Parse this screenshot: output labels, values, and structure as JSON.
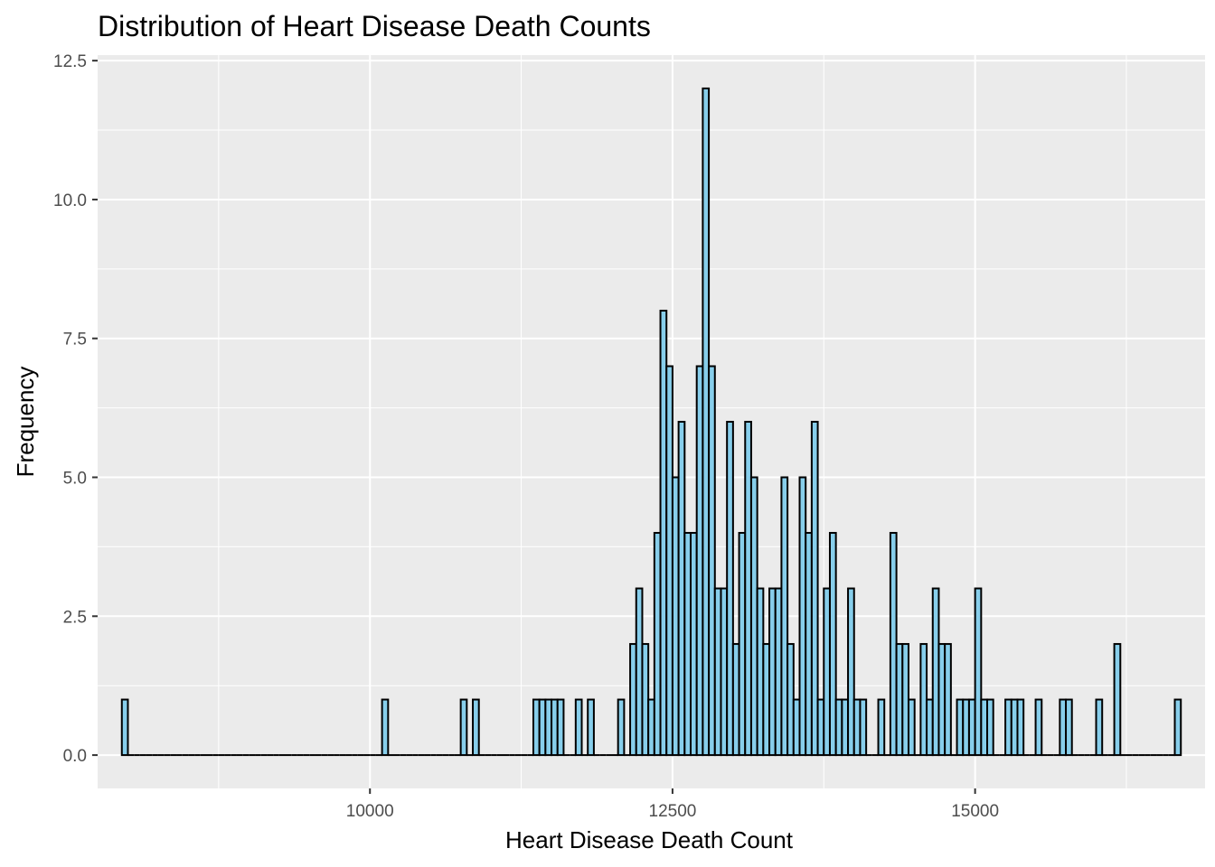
{
  "chart_data": {
    "type": "bar",
    "subtype": "histogram",
    "title": "Distribution of Heart Disease Death Counts",
    "xlabel": "Heart Disease Death Count",
    "ylabel": "Frequency",
    "xlim": [
      7750,
      16900
    ],
    "ylim": [
      -0.6,
      12.6
    ],
    "x_ticks": [
      10000,
      12500,
      15000
    ],
    "x_tick_labels": [
      "10000",
      "12500",
      "15000"
    ],
    "y_ticks": [
      0,
      2.5,
      5,
      7.5,
      10,
      12.5
    ],
    "y_tick_labels": [
      "0.0",
      "2.5",
      "5.0",
      "7.5",
      "10.0",
      "12.5"
    ],
    "bin_width": 50,
    "bins": {
      "x_start": [
        7950,
        10100,
        10750,
        10850,
        11350,
        11400,
        11450,
        11500,
        11550,
        11700,
        11800,
        12050,
        12150,
        12200,
        12250,
        12300,
        12350,
        12400,
        12450,
        12500,
        12550,
        12600,
        12650,
        12700,
        12750,
        12800,
        12850,
        12900,
        12950,
        13000,
        13050,
        13100,
        13150,
        13200,
        13250,
        13300,
        13350,
        13400,
        13450,
        13500,
        13550,
        13600,
        13650,
        13700,
        13750,
        13800,
        13850,
        13900,
        13950,
        14000,
        14050,
        14200,
        14300,
        14350,
        14400,
        14450,
        14550,
        14600,
        14650,
        14700,
        14750,
        14850,
        14900,
        14950,
        15000,
        15050,
        15100,
        15250,
        15300,
        15350,
        15500,
        15700,
        15750,
        16000,
        16150,
        16650
      ],
      "count": [
        1,
        1,
        1,
        1,
        1,
        1,
        1,
        1,
        1,
        1,
        1,
        1,
        2,
        3,
        2,
        1,
        4,
        8,
        7,
        5,
        6,
        4,
        4,
        7,
        12,
        7,
        3,
        3,
        6,
        2,
        4,
        6,
        5,
        3,
        2,
        3,
        3,
        5,
        2,
        1,
        5,
        4,
        6,
        1,
        3,
        4,
        1,
        1,
        3,
        1,
        1,
        1,
        4,
        2,
        2,
        1,
        2,
        1,
        3,
        2,
        2,
        1,
        1,
        1,
        3,
        1,
        1,
        1,
        1,
        1,
        1,
        1,
        1,
        1,
        2,
        1
      ]
    },
    "bar_fill": "#87ceeb",
    "bar_stroke": "#000000",
    "panel_background": "#ebebeb",
    "grid": true,
    "grid_color": "#ffffff",
    "legend": "none"
  }
}
